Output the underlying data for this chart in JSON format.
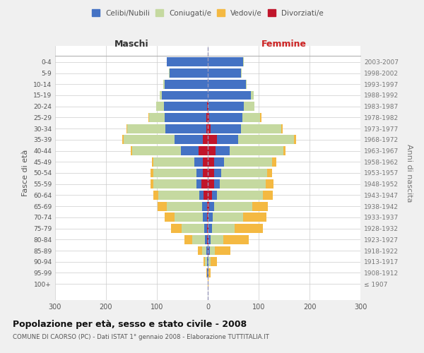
{
  "age_groups": [
    "100+",
    "95-99",
    "90-94",
    "85-89",
    "80-84",
    "75-79",
    "70-74",
    "65-69",
    "60-64",
    "55-59",
    "50-54",
    "45-49",
    "40-44",
    "35-39",
    "30-34",
    "25-29",
    "20-24",
    "15-19",
    "10-14",
    "5-9",
    "0-4"
  ],
  "birth_years": [
    "≤ 1907",
    "1908-1912",
    "1913-1917",
    "1918-1922",
    "1923-1927",
    "1928-1932",
    "1933-1937",
    "1938-1942",
    "1943-1947",
    "1948-1952",
    "1953-1957",
    "1958-1962",
    "1963-1967",
    "1968-1972",
    "1973-1977",
    "1978-1982",
    "1983-1987",
    "1988-1992",
    "1993-1997",
    "1998-2002",
    "2003-2007"
  ],
  "male_celibi": [
    0,
    1,
    2,
    3,
    5,
    6,
    8,
    9,
    9,
    10,
    12,
    17,
    35,
    55,
    80,
    82,
    85,
    90,
    85,
    75,
    80
  ],
  "male_coniugati": [
    0,
    1,
    3,
    8,
    25,
    45,
    55,
    70,
    80,
    85,
    85,
    80,
    95,
    100,
    75,
    30,
    15,
    5,
    2,
    1,
    1
  ],
  "male_vedovi": [
    0,
    1,
    3,
    8,
    15,
    20,
    20,
    18,
    10,
    5,
    5,
    3,
    3,
    3,
    2,
    2,
    1,
    0,
    0,
    0,
    0
  ],
  "male_divorziati": [
    0,
    0,
    0,
    0,
    1,
    1,
    2,
    2,
    8,
    12,
    10,
    10,
    18,
    10,
    3,
    3,
    1,
    0,
    0,
    0,
    0
  ],
  "female_celibi": [
    0,
    1,
    2,
    3,
    4,
    6,
    8,
    10,
    10,
    12,
    15,
    20,
    28,
    42,
    60,
    65,
    70,
    85,
    75,
    65,
    70
  ],
  "female_coniugati": [
    0,
    1,
    4,
    10,
    25,
    45,
    60,
    75,
    90,
    90,
    90,
    95,
    105,
    110,
    80,
    35,
    20,
    5,
    2,
    1,
    1
  ],
  "female_vedovi": [
    1,
    3,
    12,
    30,
    50,
    55,
    45,
    30,
    20,
    15,
    10,
    8,
    5,
    3,
    2,
    2,
    1,
    0,
    0,
    0,
    0
  ],
  "female_divorziati": [
    0,
    0,
    0,
    1,
    2,
    2,
    2,
    3,
    8,
    12,
    12,
    12,
    15,
    18,
    5,
    3,
    1,
    0,
    0,
    0,
    0
  ],
  "color_celibi": "#4472c4",
  "color_coniugati": "#c5d9a0",
  "color_vedovi": "#f4b942",
  "color_divorziati": "#c0152b",
  "title": "Popolazione per età, sesso e stato civile - 2008",
  "subtitle": "COMUNE DI CAORSO (PC) - Dati ISTAT 1° gennaio 2008 - Elaborazione TUTTITALIA.IT",
  "ylabel_left": "Fasce di età",
  "ylabel_right": "Anni di nascita",
  "xlim": 300,
  "background_color": "#f0f0f0",
  "plot_bg_color": "#ffffff"
}
